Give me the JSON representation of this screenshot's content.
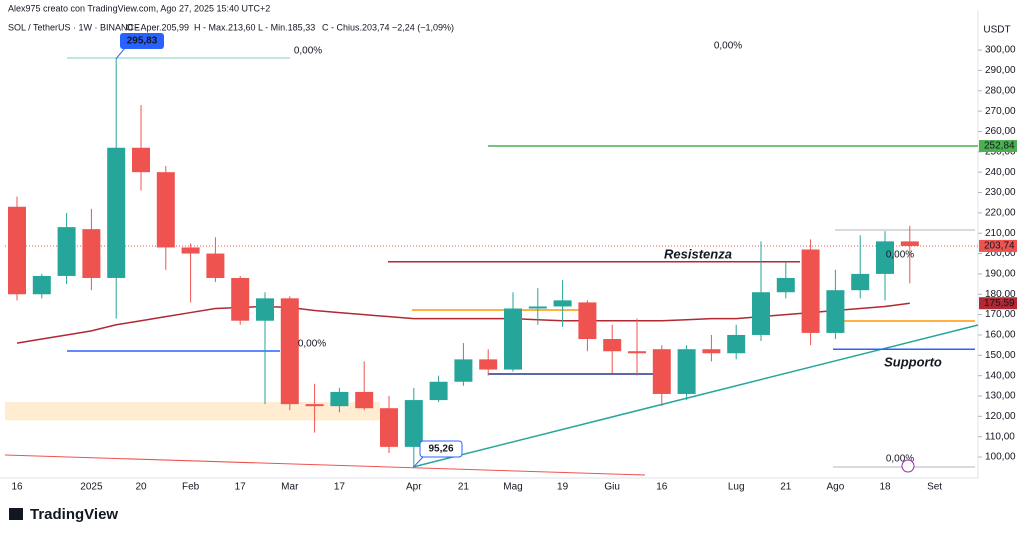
{
  "chart_data": {
    "type": "candlestick",
    "header": "Alex975 creato con TradingView.com, Ago 27, 2025 15:40 UTC+2",
    "legend": {
      "symbol": "SOL / TetherUS · 1W · BINANCE",
      "items": [
        "O - Aper.205,99",
        "H - Max.213,60",
        "L - Min.185,33",
        "C - Chius.203,74"
      ],
      "change": "−2,24 (−1,09%)"
    },
    "currency": "USDT",
    "logo": "TradingView",
    "categories": [
      "16",
      null,
      null,
      "2025",
      null,
      "20",
      null,
      "Feb",
      null,
      "17",
      null,
      "Mar",
      null,
      "17",
      null,
      null,
      "Apr",
      null,
      "21",
      null,
      "Mag",
      null,
      "19",
      null,
      "Giu",
      null,
      "16",
      null,
      null,
      "Lug",
      null,
      "21",
      null,
      "Ago",
      null,
      "18",
      null,
      "Set"
    ],
    "open": [
      223,
      180,
      189,
      212,
      188,
      252,
      240,
      203,
      200,
      188,
      167,
      178,
      126,
      125,
      132,
      124,
      105,
      128,
      137,
      148,
      143,
      173,
      174,
      176,
      158,
      152,
      153,
      131,
      153,
      151,
      160,
      181,
      202,
      161,
      182,
      190,
      205.99,
      null
    ],
    "high": [
      228,
      190,
      220,
      222,
      296,
      273,
      243,
      205,
      208,
      189,
      181,
      179,
      136,
      134,
      147,
      130,
      134,
      140,
      156,
      153,
      181,
      183,
      187,
      177,
      165,
      168,
      155,
      155,
      160,
      165,
      206,
      196,
      207,
      192,
      209,
      211,
      213.6,
      null
    ],
    "low": [
      177,
      178,
      185,
      182,
      168,
      231,
      192,
      176,
      186,
      165,
      126,
      123,
      112,
      122,
      123,
      102,
      95.26,
      127,
      135,
      140,
      142,
      165,
      164,
      152,
      141,
      140,
      125,
      128,
      147,
      148,
      157,
      178,
      155,
      158,
      178,
      177,
      185.33,
      null
    ],
    "close": [
      180,
      189,
      213,
      188,
      252,
      240,
      203,
      200,
      188,
      167,
      178,
      126,
      125,
      132,
      124,
      105,
      128,
      137,
      148,
      143,
      173,
      174,
      177,
      158,
      152,
      151,
      131,
      153,
      151,
      160,
      181,
      188,
      161,
      182,
      190,
      206,
      203.74,
      null
    ],
    "up_color": "#26a69a",
    "down_color": "#ef5350",
    "ma": {
      "color": "#b22833",
      "values": [
        156,
        158,
        160,
        162,
        165,
        167,
        169,
        171,
        173,
        173.5,
        174,
        173.5,
        172,
        171,
        170,
        169,
        168,
        168,
        168,
        168,
        168,
        167.5,
        167,
        167,
        167,
        167,
        167,
        167.5,
        168,
        168,
        169,
        170,
        171,
        172,
        173,
        174,
        175.59,
        null
      ]
    },
    "ylim": [
      89.7,
      319.7
    ],
    "yticks": [
      {
        "value": 100,
        "label": "100,00"
      },
      {
        "value": 110,
        "label": "110,00"
      },
      {
        "value": 120,
        "label": "120,00"
      },
      {
        "value": 130,
        "label": "130,00"
      },
      {
        "value": 140,
        "label": "140,00"
      },
      {
        "value": 150,
        "label": "150,00"
      },
      {
        "value": 160,
        "label": "160,00"
      },
      {
        "value": 170,
        "label": "170,00"
      },
      {
        "value": 180,
        "label": "180,00"
      },
      {
        "value": 190,
        "label": "190,00"
      },
      {
        "value": 200,
        "label": "200,00"
      },
      {
        "value": 210,
        "label": "210,00"
      },
      {
        "value": 220,
        "label": "220,00"
      },
      {
        "value": 230,
        "label": "230,00"
      },
      {
        "value": 240,
        "label": "240,00"
      },
      {
        "value": 250,
        "label": "250,00"
      },
      {
        "value": 260,
        "label": "260,00"
      },
      {
        "value": 270,
        "label": "270,00"
      },
      {
        "value": 280,
        "label": "280,00"
      },
      {
        "value": 290,
        "label": "290,00"
      },
      {
        "value": 300,
        "label": "300,00"
      }
    ],
    "levels": [
      {
        "name": "Resistenza",
        "value": 196,
        "color": "#b22833"
      },
      {
        "name": "Supporto",
        "value": 153,
        "color": "#2962ff"
      }
    ],
    "price_labels": [
      {
        "value": 252.84,
        "label": "252,84",
        "color": "#4caf50"
      },
      {
        "value": 203.74,
        "label": "203,74",
        "color": "#ef5350"
      },
      {
        "value": 175.59,
        "label": "175,59",
        "color": "#b22833"
      }
    ],
    "max_label": {
      "value": 295.83,
      "label": "295,83"
    },
    "min_label": {
      "value": 95.26,
      "label": "95,26"
    },
    "percent_labels": [
      "0,00%",
      "0,00%",
      "0,00%",
      "0,00%",
      "0,00%"
    ],
    "zone": [
      118,
      127
    ]
  }
}
